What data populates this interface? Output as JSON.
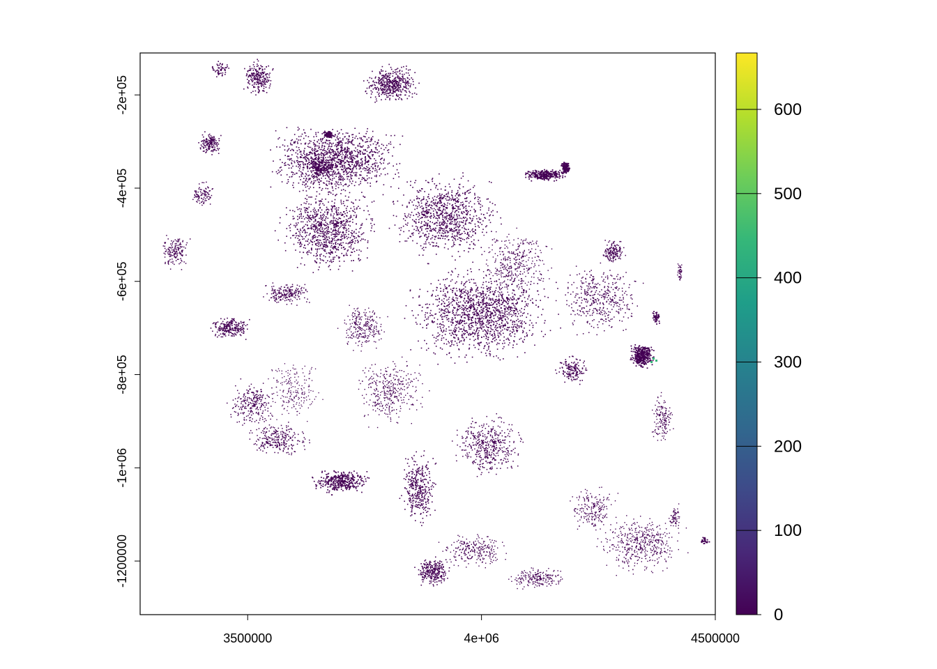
{
  "map": {
    "x_axis": {
      "ticks": [
        {
          "value": 3500000,
          "label": "3500000"
        },
        {
          "value": 4000000,
          "label": "4e+06"
        },
        {
          "value": 4500000,
          "label": "4500000"
        }
      ]
    },
    "y_axis": {
      "ticks": [
        {
          "value": -200000,
          "label": "-2e+05"
        },
        {
          "value": -400000,
          "label": "-4e+05"
        },
        {
          "value": -600000,
          "label": "-6e+05"
        },
        {
          "value": -800000,
          "label": "-8e+05"
        },
        {
          "value": -1000000,
          "label": "-1e+06"
        },
        {
          "value": -1200000,
          "label": "-1200000"
        }
      ]
    },
    "extent": {
      "xmin": 3270000,
      "xmax": 4500000,
      "ymin": -1315000,
      "ymax": -110000
    },
    "raster_color": "#440154",
    "hotspot_color": "#35B779"
  },
  "legend": {
    "colors": [
      "#440154",
      "#482878",
      "#3E4A89",
      "#31688E",
      "#26828E",
      "#1F9E89",
      "#35B779",
      "#6DCD59",
      "#B4DE2C",
      "#FDE725"
    ],
    "min": 0,
    "max": 667,
    "ticks": [
      {
        "value": 0,
        "label": "0"
      },
      {
        "value": 100,
        "label": "100"
      },
      {
        "value": 200,
        "label": "200"
      },
      {
        "value": 300,
        "label": "300"
      },
      {
        "value": 400,
        "label": "400"
      },
      {
        "value": 500,
        "label": "500"
      },
      {
        "value": 600,
        "label": "600"
      }
    ]
  }
}
